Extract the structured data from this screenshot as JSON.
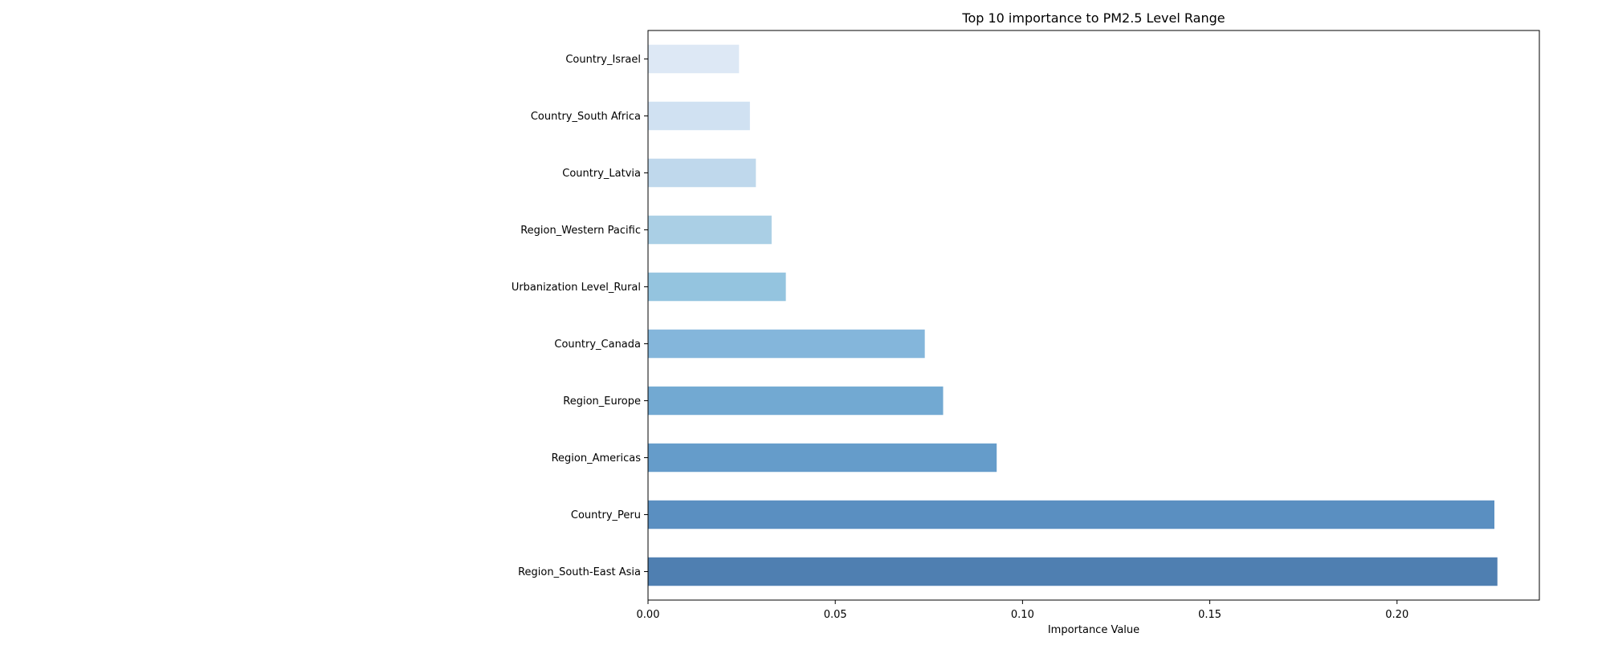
{
  "chart_data": {
    "type": "bar",
    "orientation": "horizontal",
    "title": "Top 10 importance to PM2.5 Level Range",
    "xlabel": "Importance Value",
    "ylabel": "",
    "xlim": [
      0,
      0.238
    ],
    "xticks": [
      "0.00",
      "0.05",
      "0.10",
      "0.15",
      "0.20"
    ],
    "grid": false,
    "categories": [
      "Country_Israel",
      "Country_South Africa",
      "Country_Latvia",
      "Region_Western Pacific",
      "Urbanization Level_Rural",
      "Country_Canada",
      "Region_Europe",
      "Region_Americas",
      "Country_Peru",
      "Region_South-East Asia"
    ],
    "values": [
      0.0243,
      0.0272,
      0.0288,
      0.033,
      0.0368,
      0.0739,
      0.0788,
      0.0931,
      0.226,
      0.2268
    ],
    "colors": [
      "#dde8f5",
      "#d0e1f2",
      "#bfd8ec",
      "#aacfe5",
      "#94c4df",
      "#84b6db",
      "#72a9d2",
      "#659cca",
      "#5a8fc1",
      "#4f7fb1"
    ]
  }
}
